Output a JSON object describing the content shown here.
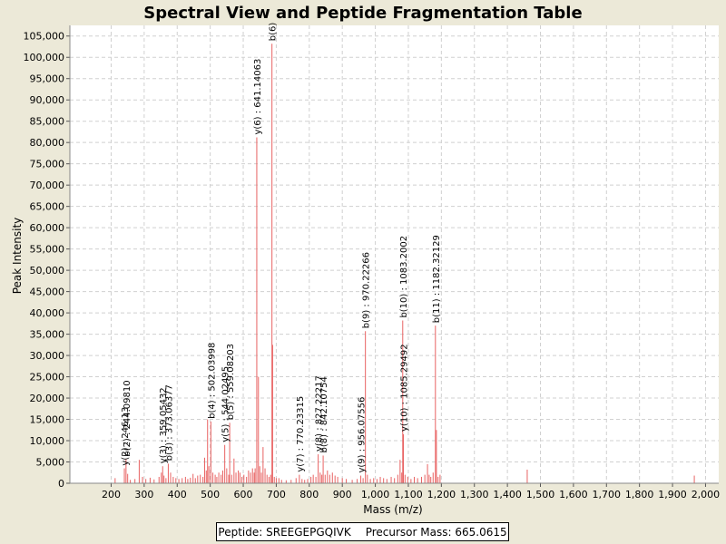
{
  "chart_data": {
    "type": "bar",
    "title": "Spectral View and Peptide Fragmentation Table",
    "xlabel": "Mass (m/z)",
    "ylabel": "Peak Intensity",
    "xlim": [
      75,
      2040
    ],
    "ylim": [
      0,
      107500
    ],
    "xticks": [
      200,
      300,
      400,
      500,
      600,
      700,
      800,
      900,
      1000,
      1100,
      1200,
      1300,
      1400,
      1500,
      1600,
      1700,
      1800,
      1900,
      2000
    ],
    "yticks": [
      0,
      5000,
      10000,
      15000,
      20000,
      25000,
      30000,
      35000,
      40000,
      45000,
      50000,
      55000,
      60000,
      65000,
      70000,
      75000,
      80000,
      85000,
      90000,
      95000,
      100000,
      105000
    ],
    "grid": true,
    "colors": {
      "peak": "#e86262",
      "plot_bg": "#ffffff",
      "grid": "#d0d0d0",
      "page_bg": "#ece9d8"
    },
    "peaks": [
      {
        "x": 212,
        "y": 1200
      },
      {
        "x": 240,
        "y": 3500
      },
      {
        "x": 245,
        "y": 5600
      },
      {
        "x": 250,
        "y": 2200
      },
      {
        "x": 258,
        "y": 800
      },
      {
        "x": 272,
        "y": 1000
      },
      {
        "x": 285,
        "y": 5500
      },
      {
        "x": 295,
        "y": 1500
      },
      {
        "x": 305,
        "y": 1000
      },
      {
        "x": 318,
        "y": 1300
      },
      {
        "x": 330,
        "y": 900
      },
      {
        "x": 345,
        "y": 1500
      },
      {
        "x": 352,
        "y": 2500
      },
      {
        "x": 356,
        "y": 4000
      },
      {
        "x": 360,
        "y": 1800
      },
      {
        "x": 366,
        "y": 1200
      },
      {
        "x": 373,
        "y": 4600
      },
      {
        "x": 380,
        "y": 2500
      },
      {
        "x": 388,
        "y": 1500
      },
      {
        "x": 396,
        "y": 1200
      },
      {
        "x": 405,
        "y": 1000
      },
      {
        "x": 415,
        "y": 1200
      },
      {
        "x": 425,
        "y": 1500
      },
      {
        "x": 432,
        "y": 1000
      },
      {
        "x": 440,
        "y": 1300
      },
      {
        "x": 448,
        "y": 2200
      },
      {
        "x": 455,
        "y": 1200
      },
      {
        "x": 462,
        "y": 1800
      },
      {
        "x": 470,
        "y": 2000
      },
      {
        "x": 478,
        "y": 1500
      },
      {
        "x": 483,
        "y": 6000
      },
      {
        "x": 488,
        "y": 3000
      },
      {
        "x": 492,
        "y": 15000
      },
      {
        "x": 496,
        "y": 4000
      },
      {
        "x": 502,
        "y": 14500
      },
      {
        "x": 508,
        "y": 2500
      },
      {
        "x": 515,
        "y": 2000
      },
      {
        "x": 520,
        "y": 1500
      },
      {
        "x": 526,
        "y": 2500
      },
      {
        "x": 533,
        "y": 2000
      },
      {
        "x": 538,
        "y": 3000
      },
      {
        "x": 544,
        "y": 9000
      },
      {
        "x": 550,
        "y": 3500
      },
      {
        "x": 556,
        "y": 2000
      },
      {
        "x": 559,
        "y": 14200
      },
      {
        "x": 565,
        "y": 2000
      },
      {
        "x": 572,
        "y": 5800
      },
      {
        "x": 578,
        "y": 2500
      },
      {
        "x": 585,
        "y": 3000
      },
      {
        "x": 590,
        "y": 2500
      },
      {
        "x": 596,
        "y": 1500
      },
      {
        "x": 602,
        "y": 2000
      },
      {
        "x": 610,
        "y": 1500
      },
      {
        "x": 616,
        "y": 3000
      },
      {
        "x": 622,
        "y": 2500
      },
      {
        "x": 628,
        "y": 3500
      },
      {
        "x": 633,
        "y": 2500
      },
      {
        "x": 636,
        "y": 3500
      },
      {
        "x": 641,
        "y": 81200
      },
      {
        "x": 646,
        "y": 25000
      },
      {
        "x": 650,
        "y": 4000
      },
      {
        "x": 655,
        "y": 2500
      },
      {
        "x": 660,
        "y": 8500
      },
      {
        "x": 666,
        "y": 3500
      },
      {
        "x": 672,
        "y": 2000
      },
      {
        "x": 678,
        "y": 1500
      },
      {
        "x": 683,
        "y": 2000
      },
      {
        "x": 687,
        "y": 103200
      },
      {
        "x": 689,
        "y": 32500
      },
      {
        "x": 694,
        "y": 1500
      },
      {
        "x": 700,
        "y": 1200
      },
      {
        "x": 708,
        "y": 1200
      },
      {
        "x": 716,
        "y": 800
      },
      {
        "x": 730,
        "y": 700
      },
      {
        "x": 745,
        "y": 800
      },
      {
        "x": 760,
        "y": 1200
      },
      {
        "x": 770,
        "y": 2000
      },
      {
        "x": 778,
        "y": 1000
      },
      {
        "x": 786,
        "y": 800
      },
      {
        "x": 795,
        "y": 1000
      },
      {
        "x": 805,
        "y": 1500
      },
      {
        "x": 812,
        "y": 2000
      },
      {
        "x": 820,
        "y": 1500
      },
      {
        "x": 827,
        "y": 6800
      },
      {
        "x": 833,
        "y": 2500
      },
      {
        "x": 838,
        "y": 2000
      },
      {
        "x": 842,
        "y": 6500
      },
      {
        "x": 848,
        "y": 2000
      },
      {
        "x": 855,
        "y": 3000
      },
      {
        "x": 862,
        "y": 2000
      },
      {
        "x": 870,
        "y": 2500
      },
      {
        "x": 878,
        "y": 1800
      },
      {
        "x": 886,
        "y": 1500
      },
      {
        "x": 900,
        "y": 1200
      },
      {
        "x": 912,
        "y": 1000
      },
      {
        "x": 930,
        "y": 800
      },
      {
        "x": 945,
        "y": 1000
      },
      {
        "x": 956,
        "y": 1800
      },
      {
        "x": 963,
        "y": 1200
      },
      {
        "x": 970,
        "y": 35700
      },
      {
        "x": 976,
        "y": 2000
      },
      {
        "x": 985,
        "y": 1000
      },
      {
        "x": 995,
        "y": 1200
      },
      {
        "x": 1005,
        "y": 1000
      },
      {
        "x": 1015,
        "y": 1500
      },
      {
        "x": 1025,
        "y": 1200
      },
      {
        "x": 1035,
        "y": 1000
      },
      {
        "x": 1048,
        "y": 1500
      },
      {
        "x": 1058,
        "y": 1200
      },
      {
        "x": 1068,
        "y": 2000
      },
      {
        "x": 1075,
        "y": 5500
      },
      {
        "x": 1080,
        "y": 2500
      },
      {
        "x": 1083,
        "y": 38200
      },
      {
        "x": 1085,
        "y": 11500
      },
      {
        "x": 1090,
        "y": 2000
      },
      {
        "x": 1098,
        "y": 1500
      },
      {
        "x": 1108,
        "y": 1000
      },
      {
        "x": 1118,
        "y": 1500
      },
      {
        "x": 1128,
        "y": 1200
      },
      {
        "x": 1140,
        "y": 1500
      },
      {
        "x": 1150,
        "y": 2000
      },
      {
        "x": 1158,
        "y": 4500
      },
      {
        "x": 1163,
        "y": 2000
      },
      {
        "x": 1168,
        "y": 1500
      },
      {
        "x": 1175,
        "y": 2500
      },
      {
        "x": 1182,
        "y": 37000
      },
      {
        "x": 1185,
        "y": 12500
      },
      {
        "x": 1190,
        "y": 1500
      },
      {
        "x": 1196,
        "y": 2000
      },
      {
        "x": 1460,
        "y": 3200
      },
      {
        "x": 1966,
        "y": 1800
      }
    ],
    "annotations": [
      {
        "x": 240,
        "y": 3500,
        "label": "y(2) : 246.13"
      },
      {
        "x": 245,
        "y": 5600,
        "label": "b(2) : 244.09810"
      },
      {
        "x": 356,
        "y": 4000,
        "label": "y(3) : 359.05432"
      },
      {
        "x": 373,
        "y": 4600,
        "label": "b(3) : 373.06377"
      },
      {
        "x": 502,
        "y": 14500,
        "label": "b(4) : 502.03998"
      },
      {
        "x": 544,
        "y": 9000,
        "label": "y(5) : 544.02495"
      },
      {
        "x": 559,
        "y": 14200,
        "label": "b(5) : 559.08203"
      },
      {
        "x": 641,
        "y": 81200,
        "label": "y(6) : 641.14063"
      },
      {
        "x": 687,
        "y": 103200,
        "label": "b(6)"
      },
      {
        "x": 770,
        "y": 2000,
        "label": "y(7) : 770.23315"
      },
      {
        "x": 827,
        "y": 6800,
        "label": "y(8) : 827.22217"
      },
      {
        "x": 842,
        "y": 6500,
        "label": "b(8) : 842.10754"
      },
      {
        "x": 956,
        "y": 1800,
        "label": "y(9) : 956.07556"
      },
      {
        "x": 970,
        "y": 35700,
        "label": "b(9) : 970.22266"
      },
      {
        "x": 1085,
        "y": 11500,
        "label": "y(10) : 1085.29492"
      },
      {
        "x": 1083,
        "y": 38200,
        "label": "b(10) : 1083.2002"
      },
      {
        "x": 1182,
        "y": 37000,
        "label": "b(11) : 1182.32129"
      }
    ]
  },
  "legend": {
    "peptide": "Peptide: SREEGEPGQIVK",
    "precursor": "Precursor Mass: 665.0615"
  }
}
